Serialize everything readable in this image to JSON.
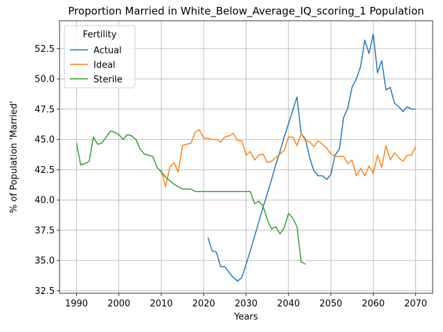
{
  "chart_data": {
    "type": "line",
    "title": "Proportion Married in White_Below_Average_IQ_scoring_1 Population",
    "xlabel": "Years",
    "ylabel": "% of Population 'Married'",
    "xlim": [
      1986,
      2074
    ],
    "ylim": [
      32.3,
      54.8
    ],
    "xticks": [
      1990,
      2000,
      2010,
      2020,
      2030,
      2040,
      2050,
      2060,
      2070
    ],
    "yticks": [
      32.5,
      35.0,
      37.5,
      40.0,
      42.5,
      45.0,
      47.5,
      50.0,
      52.5
    ],
    "ytick_labels": [
      "32.5",
      "35.0",
      "37.5",
      "40.0",
      "42.5",
      "45.0",
      "47.5",
      "50.0",
      "52.5"
    ],
    "grid": true,
    "legend": {
      "title": "Fertility",
      "position": "top-left"
    },
    "series": [
      {
        "name": "Actual",
        "color": "#1f77b4",
        "x": [
          2021,
          2022,
          2023,
          2024,
          2025,
          2026,
          2027,
          2028,
          2029,
          2030,
          2031,
          2032,
          2033,
          2034,
          2035,
          2036,
          2037,
          2038,
          2039,
          2040,
          2041,
          2042,
          2043,
          2044,
          2045,
          2046,
          2047,
          2048,
          2049,
          2050,
          2051,
          2052,
          2053,
          2054,
          2055,
          2056,
          2057,
          2058,
          2059,
          2060,
          2061,
          2062,
          2063,
          2064,
          2065,
          2066,
          2067,
          2068,
          2069,
          2070
        ],
        "values": [
          36.9,
          35.8,
          35.7,
          34.5,
          34.5,
          34.0,
          33.6,
          33.3,
          33.6,
          34.7,
          35.8,
          37.0,
          38.2,
          39.4,
          40.5,
          41.7,
          42.9,
          44.0,
          45.2,
          46.3,
          47.4,
          48.5,
          45.5,
          45.0,
          43.5,
          42.4,
          42.0,
          42.0,
          41.7,
          42.1,
          43.7,
          44.2,
          46.8,
          47.6,
          49.3,
          50.0,
          51.0,
          53.2,
          52.1,
          53.7,
          50.5,
          51.5,
          49.1,
          49.3,
          48.0,
          47.7,
          47.3,
          47.7,
          47.5,
          47.5
        ],
        "x_offset_note": ""
      },
      {
        "name": "Ideal",
        "color": "#ff7f0e",
        "x": [
          2010,
          2011,
          2012,
          2013,
          2014,
          2015,
          2016,
          2017,
          2018,
          2019,
          2020,
          2021,
          2022,
          2023,
          2024,
          2025,
          2026,
          2027,
          2028,
          2029,
          2030,
          2031,
          2032,
          2033,
          2034,
          2035,
          2036,
          2037,
          2038,
          2039,
          2040,
          2041,
          2042,
          2043,
          2044,
          2045,
          2046,
          2047,
          2048,
          2049,
          2050,
          2051,
          2052,
          2053,
          2054,
          2055,
          2056,
          2057,
          2058,
          2059,
          2060,
          2061,
          2062,
          2063,
          2064,
          2065,
          2066,
          2067,
          2068,
          2069,
          2070
        ],
        "values": [
          42.5,
          41.1,
          42.7,
          43.1,
          42.3,
          44.5,
          44.6,
          44.7,
          45.6,
          45.8,
          45.1,
          45.1,
          45.0,
          45.0,
          44.8,
          45.2,
          45.3,
          45.5,
          44.9,
          44.9,
          43.7,
          44.0,
          43.3,
          43.7,
          43.8,
          43.1,
          43.2,
          43.5,
          43.8,
          44.1,
          45.2,
          45.2,
          44.5,
          45.5,
          44.9,
          44.8,
          44.4,
          44.9,
          44.6,
          44.3,
          43.8,
          43.6,
          43.6,
          43.6,
          43.0,
          43.3,
          42.0,
          42.6,
          42.0,
          42.8,
          42.2,
          43.7,
          42.7,
          44.5,
          43.3,
          43.9,
          43.5,
          43.2,
          43.7,
          43.7,
          44.4
        ]
      },
      {
        "name": "Sterile",
        "color": "#2ca02c",
        "x": [
          1990,
          1991,
          1992,
          1993,
          1994,
          1995,
          1996,
          1997,
          1998,
          1999,
          2000,
          2001,
          2002,
          2003,
          2004,
          2005,
          2006,
          2007,
          2008,
          2009,
          2010,
          2011,
          2012,
          2013,
          2014,
          2015,
          2016,
          2017,
          2018,
          2019,
          2020,
          2021,
          2022,
          2023,
          2024,
          2025,
          2026,
          2027,
          2028,
          2029,
          2030,
          2031,
          2032,
          2033,
          2034,
          2035,
          2036,
          2037,
          2038,
          2039,
          2040,
          2041,
          2042,
          2043,
          2044
        ],
        "values": [
          44.7,
          42.9,
          43.0,
          43.2,
          45.2,
          44.6,
          44.7,
          45.2,
          45.7,
          45.6,
          45.4,
          45.0,
          45.4,
          45.3,
          45.0,
          44.2,
          43.8,
          43.7,
          43.6,
          42.7,
          42.3,
          41.9,
          41.6,
          41.3,
          41.1,
          40.9,
          40.9,
          40.9,
          40.7,
          40.7,
          40.7,
          40.7,
          40.7,
          40.7,
          40.7,
          40.7,
          40.7,
          40.7,
          40.7,
          40.7,
          40.7,
          40.7,
          39.7,
          39.9,
          39.5,
          38.4,
          37.6,
          37.8,
          37.2,
          37.7,
          38.9,
          38.5,
          37.8,
          34.9,
          34.7
        ]
      }
    ]
  }
}
